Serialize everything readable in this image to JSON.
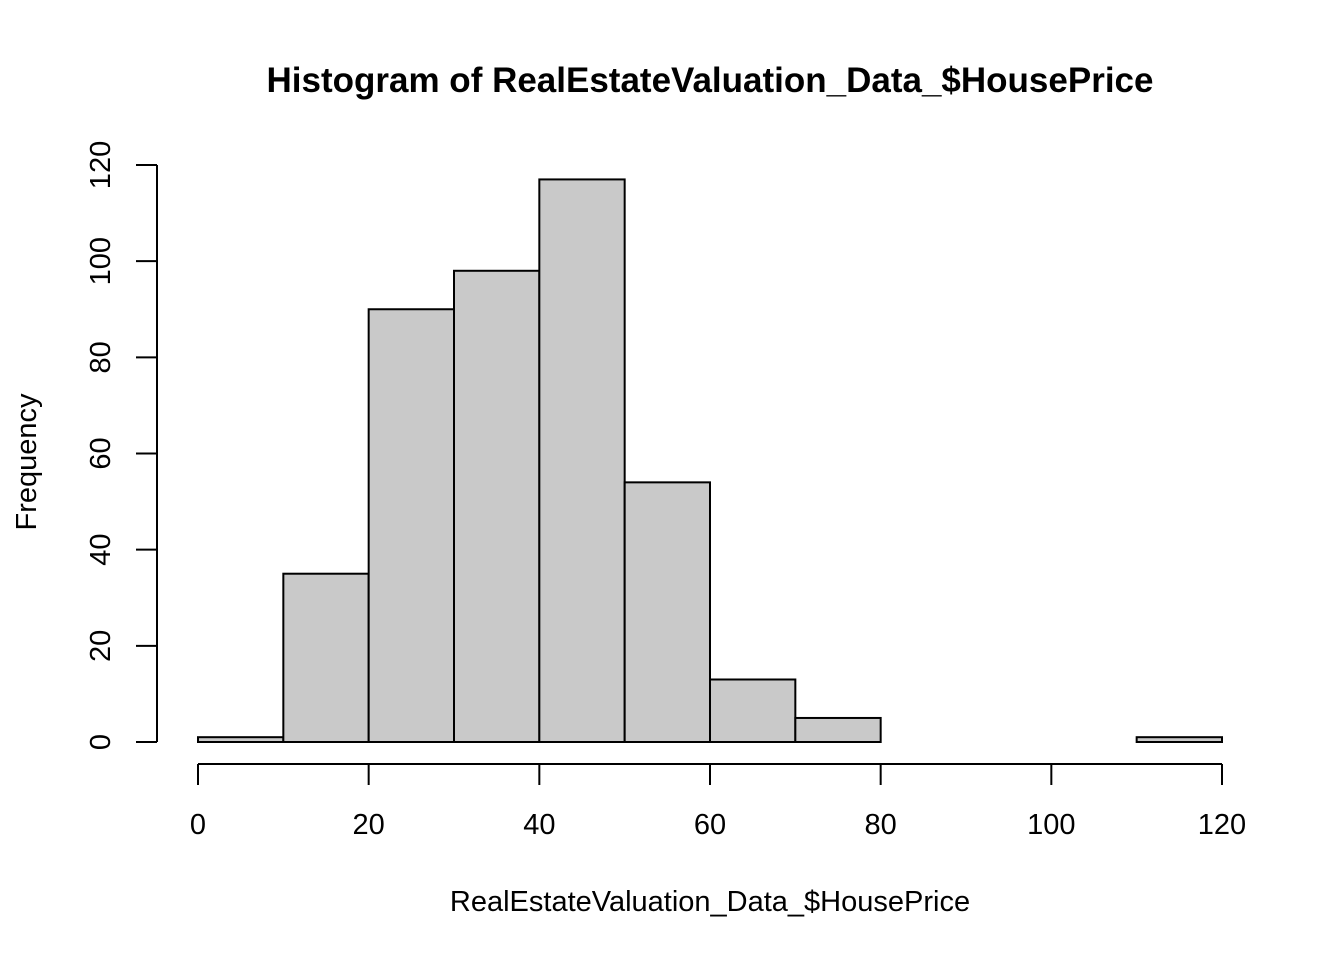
{
  "chart_data": {
    "type": "bar",
    "subtype": "histogram",
    "title": "Histogram of RealEstateValuation_Data_$HousePrice",
    "xlabel": "RealEstateValuation_Data_$HousePrice",
    "ylabel": "Frequency",
    "bin_edges": [
      0,
      10,
      20,
      30,
      40,
      50,
      60,
      70,
      80,
      90,
      100,
      110,
      120
    ],
    "values": [
      1,
      35,
      90,
      98,
      117,
      54,
      13,
      5,
      0,
      0,
      0,
      1
    ],
    "xlim": [
      0,
      120
    ],
    "ylim": [
      0,
      120
    ],
    "x_ticks": [
      0,
      20,
      40,
      60,
      80,
      100,
      120
    ],
    "y_ticks": [
      0,
      20,
      40,
      60,
      80,
      100,
      120
    ],
    "bar_color": "#c9c9c9",
    "grid": false,
    "legend": "none"
  }
}
